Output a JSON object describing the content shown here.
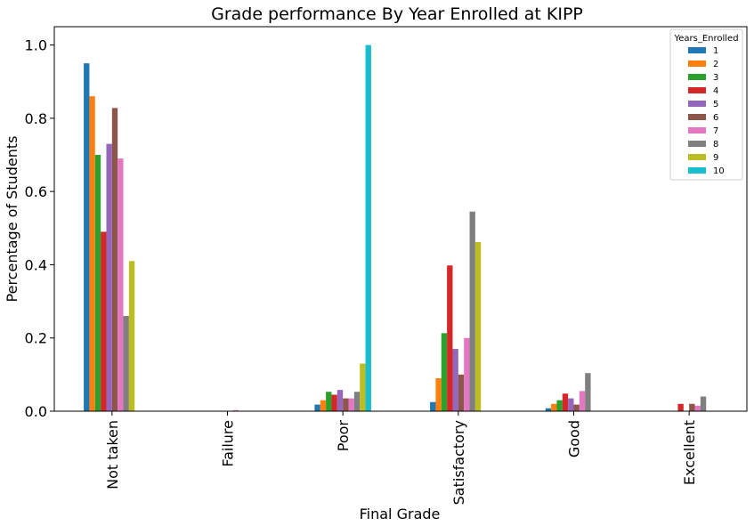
{
  "chart_data": {
    "type": "bar",
    "title": "Grade performance By Year Enrolled at KIPP",
    "xlabel": "Final Grade",
    "ylabel": "Percentage of Students",
    "categories": [
      "Not taken",
      "Failure",
      "Poor",
      "Satisfactory",
      "Good",
      "Excellent"
    ],
    "ylim": [
      0,
      1.05
    ],
    "yticks": [
      "0.0",
      "0.2",
      "0.4",
      "0.6",
      "0.8",
      "1.0"
    ],
    "legend": {
      "title": "Years_Enrolled",
      "placement": "top-right"
    },
    "grid": false,
    "series": [
      {
        "name": "1",
        "color": "#1f77b4",
        "values": [
          0.95,
          0.0,
          0.018,
          0.025,
          0.008,
          0.0
        ]
      },
      {
        "name": "2",
        "color": "#ff7f0e",
        "values": [
          0.86,
          0.0,
          0.03,
          0.09,
          0.02,
          0.0
        ]
      },
      {
        "name": "3",
        "color": "#2ca02c",
        "values": [
          0.7,
          0.0,
          0.053,
          0.213,
          0.03,
          0.0
        ]
      },
      {
        "name": "4",
        "color": "#d62728",
        "values": [
          0.49,
          0.0,
          0.045,
          0.398,
          0.048,
          0.02
        ]
      },
      {
        "name": "5",
        "color": "#9467bd",
        "values": [
          0.73,
          0.0,
          0.058,
          0.17,
          0.035,
          0.0
        ]
      },
      {
        "name": "6",
        "color": "#8c564b",
        "values": [
          0.828,
          0.0,
          0.035,
          0.1,
          0.018,
          0.02
        ]
      },
      {
        "name": "7",
        "color": "#e377c2",
        "values": [
          0.69,
          0.003,
          0.035,
          0.2,
          0.055,
          0.015
        ]
      },
      {
        "name": "8",
        "color": "#7f7f7f",
        "values": [
          0.26,
          0.0,
          0.053,
          0.545,
          0.104,
          0.04
        ]
      },
      {
        "name": "9",
        "color": "#bcbd22",
        "values": [
          0.41,
          0.0,
          0.13,
          0.462,
          0.0,
          0.0
        ]
      },
      {
        "name": "10",
        "color": "#17becf",
        "values": [
          0.0,
          0.0,
          1.0,
          0.0,
          0.0,
          0.0
        ]
      }
    ]
  }
}
